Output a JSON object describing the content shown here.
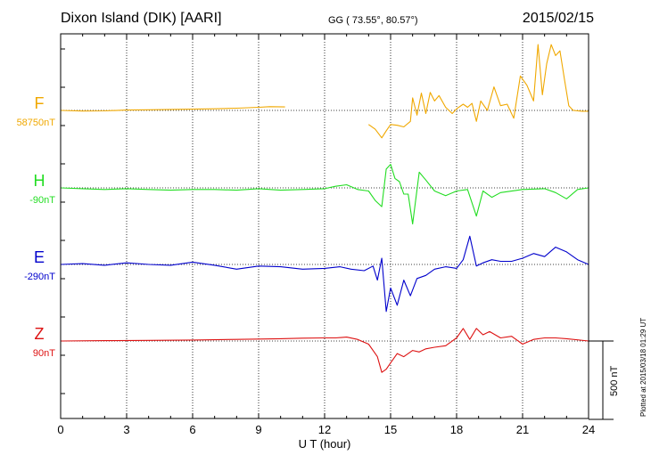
{
  "header": {
    "station": "Dixon Island (DIK)  [AARI]",
    "coords": "GG ( 73.55°,  80.57°)",
    "date": "2015/02/15"
  },
  "plot_note": "Plotted at 2015/03/18 01:29 UT",
  "scale_bar_label": "500 nT",
  "colors": {
    "F": "#f0a800",
    "H": "#22dd22",
    "E": "#0000cc",
    "Z": "#dd1111",
    "grid": "#000000"
  },
  "chart_data": {
    "type": "line",
    "title": "",
    "xlabel": "U T (hour)",
    "ylabel": "",
    "xlim": [
      0,
      24
    ],
    "x_ticks": [
      0,
      3,
      6,
      9,
      12,
      15,
      18,
      21,
      24
    ],
    "grid": true,
    "scale_nT": 500,
    "series": [
      {
        "name": "F",
        "baseline_label": "58750nT",
        "baseline_nT": 58750,
        "color": "#f0a800",
        "segments": [
          [
            [
              0.0,
              0
            ],
            [
              1.0,
              -4
            ],
            [
              2.0,
              -3
            ],
            [
              3.0,
              2
            ],
            [
              4.0,
              4
            ],
            [
              5.0,
              6
            ],
            [
              6.0,
              8
            ],
            [
              7.0,
              10
            ],
            [
              8.0,
              14
            ],
            [
              9.0,
              20
            ],
            [
              9.5,
              24
            ],
            [
              10.2,
              22
            ]
          ],
          [
            [
              14.0,
              -90
            ],
            [
              14.3,
              -120
            ],
            [
              14.6,
              -175
            ],
            [
              14.8,
              -130
            ],
            [
              15.0,
              -90
            ],
            [
              15.3,
              -95
            ],
            [
              15.6,
              -105
            ],
            [
              15.9,
              -70
            ],
            [
              16.0,
              80
            ],
            [
              16.2,
              -30
            ],
            [
              16.4,
              110
            ],
            [
              16.6,
              -20
            ],
            [
              16.8,
              115
            ],
            [
              17.0,
              60
            ],
            [
              17.2,
              95
            ],
            [
              17.5,
              20
            ],
            [
              17.8,
              -20
            ],
            [
              18.0,
              10
            ],
            [
              18.3,
              40
            ],
            [
              18.5,
              20
            ],
            [
              18.7,
              45
            ],
            [
              18.9,
              -70
            ],
            [
              19.1,
              60
            ],
            [
              19.4,
              0
            ],
            [
              19.7,
              150
            ],
            [
              20.0,
              30
            ],
            [
              20.3,
              40
            ],
            [
              20.6,
              -50
            ],
            [
              20.9,
              220
            ],
            [
              21.2,
              160
            ],
            [
              21.5,
              60
            ],
            [
              21.7,
              420
            ],
            [
              21.9,
              100
            ],
            [
              22.1,
              300
            ],
            [
              22.3,
              420
            ],
            [
              22.5,
              350
            ],
            [
              22.7,
              380
            ],
            [
              22.9,
              200
            ],
            [
              23.1,
              30
            ],
            [
              23.3,
              0
            ],
            [
              23.7,
              -5
            ],
            [
              24.0,
              -5
            ]
          ]
        ]
      },
      {
        "name": "H",
        "baseline_label": "-90nT",
        "baseline_nT": -90,
        "color": "#22dd22",
        "segments": [
          [
            [
              0.0,
              0
            ],
            [
              1.0,
              -5
            ],
            [
              2.0,
              -10
            ],
            [
              3.0,
              -5
            ],
            [
              4.0,
              -10
            ],
            [
              5.0,
              -15
            ],
            [
              6.0,
              -10
            ],
            [
              7.0,
              -10
            ],
            [
              8.0,
              -15
            ],
            [
              9.0,
              -5
            ],
            [
              10.0,
              -15
            ],
            [
              11.0,
              -10
            ],
            [
              12.0,
              -5
            ],
            [
              12.5,
              10
            ],
            [
              13.0,
              20
            ],
            [
              13.5,
              -10
            ],
            [
              14.0,
              -20
            ],
            [
              14.3,
              -80
            ],
            [
              14.6,
              -120
            ],
            [
              14.8,
              120
            ],
            [
              15.0,
              150
            ],
            [
              15.2,
              60
            ],
            [
              15.4,
              40
            ],
            [
              15.6,
              -40
            ],
            [
              15.8,
              -40
            ],
            [
              16.0,
              -230
            ],
            [
              16.3,
              100
            ],
            [
              16.6,
              50
            ],
            [
              17.0,
              -20
            ],
            [
              17.5,
              -50
            ],
            [
              18.0,
              -20
            ],
            [
              18.5,
              -10
            ],
            [
              18.9,
              -180
            ],
            [
              19.2,
              -20
            ],
            [
              19.6,
              -60
            ],
            [
              20.0,
              -30
            ],
            [
              21.0,
              -10
            ],
            [
              22.0,
              -5
            ],
            [
              22.5,
              -30
            ],
            [
              23.0,
              -70
            ],
            [
              23.5,
              -10
            ],
            [
              24.0,
              0
            ]
          ]
        ]
      },
      {
        "name": "E",
        "baseline_label": "-290nT",
        "baseline_nT": -290,
        "color": "#0000cc",
        "segments": [
          [
            [
              0.0,
              0
            ],
            [
              1.0,
              5
            ],
            [
              2.0,
              -5
            ],
            [
              3.0,
              10
            ],
            [
              4.0,
              0
            ],
            [
              5.0,
              -5
            ],
            [
              6.0,
              15
            ],
            [
              7.0,
              -5
            ],
            [
              8.0,
              -30
            ],
            [
              9.0,
              -10
            ],
            [
              10.0,
              -15
            ],
            [
              11.0,
              -30
            ],
            [
              12.0,
              -25
            ],
            [
              12.7,
              -15
            ],
            [
              13.2,
              -30
            ],
            [
              13.8,
              -40
            ],
            [
              14.2,
              -10
            ],
            [
              14.4,
              -100
            ],
            [
              14.6,
              40
            ],
            [
              14.8,
              -300
            ],
            [
              15.0,
              -150
            ],
            [
              15.3,
              -260
            ],
            [
              15.6,
              -100
            ],
            [
              15.9,
              -200
            ],
            [
              16.2,
              -90
            ],
            [
              16.6,
              -70
            ],
            [
              17.0,
              -30
            ],
            [
              17.5,
              -15
            ],
            [
              18.0,
              -25
            ],
            [
              18.3,
              30
            ],
            [
              18.6,
              180
            ],
            [
              18.9,
              -10
            ],
            [
              19.2,
              10
            ],
            [
              19.6,
              30
            ],
            [
              20.0,
              20
            ],
            [
              20.5,
              20
            ],
            [
              21.0,
              40
            ],
            [
              21.5,
              70
            ],
            [
              22.0,
              50
            ],
            [
              22.5,
              110
            ],
            [
              23.0,
              80
            ],
            [
              23.5,
              30
            ],
            [
              24.0,
              0
            ]
          ]
        ]
      },
      {
        "name": "Z",
        "baseline_label": "90nT",
        "baseline_nT": 90,
        "color": "#dd1111",
        "segments": [
          [
            [
              0.0,
              0
            ],
            [
              2.0,
              2
            ],
            [
              4.0,
              4
            ],
            [
              6.0,
              6
            ],
            [
              8.0,
              10
            ],
            [
              10.0,
              15
            ],
            [
              11.0,
              18
            ],
            [
              12.0,
              20
            ],
            [
              12.5,
              20
            ],
            [
              13.0,
              25
            ],
            [
              13.5,
              10
            ],
            [
              14.0,
              -20
            ],
            [
              14.2,
              -60
            ],
            [
              14.4,
              -100
            ],
            [
              14.6,
              -200
            ],
            [
              14.8,
              -180
            ],
            [
              15.0,
              -140
            ],
            [
              15.3,
              -80
            ],
            [
              15.6,
              -100
            ],
            [
              16.0,
              -60
            ],
            [
              16.3,
              -70
            ],
            [
              16.6,
              -50
            ],
            [
              17.0,
              -40
            ],
            [
              17.5,
              -30
            ],
            [
              18.0,
              20
            ],
            [
              18.3,
              80
            ],
            [
              18.6,
              10
            ],
            [
              18.9,
              80
            ],
            [
              19.2,
              40
            ],
            [
              19.5,
              60
            ],
            [
              20.0,
              20
            ],
            [
              20.5,
              30
            ],
            [
              21.0,
              -20
            ],
            [
              21.5,
              10
            ],
            [
              22.0,
              20
            ],
            [
              22.5,
              20
            ],
            [
              23.0,
              15
            ],
            [
              24.0,
              0
            ]
          ]
        ]
      }
    ]
  }
}
